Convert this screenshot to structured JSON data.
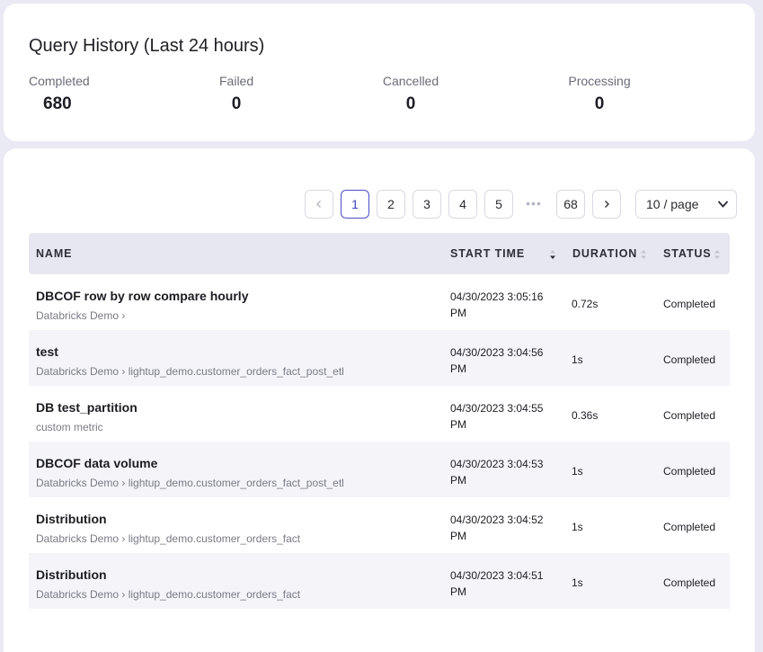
{
  "summary": {
    "title": "Query History (Last 24 hours)",
    "stats": [
      {
        "label": "Completed",
        "value": "680"
      },
      {
        "label": "Failed",
        "value": "0"
      },
      {
        "label": "Cancelled",
        "value": "0"
      },
      {
        "label": "Processing",
        "value": "0"
      }
    ]
  },
  "pagination": {
    "prev_icon": "chevron-left-icon",
    "pages": [
      "1",
      "2",
      "3",
      "4",
      "5"
    ],
    "current_page": "1",
    "ellipsis": "•••",
    "last_page": "68",
    "next_icon": "chevron-right-icon",
    "page_size": "10 / page"
  },
  "table": {
    "columns": {
      "name": "NAME",
      "start_time": "START TIME",
      "duration": "DURATION",
      "status": "STATUS"
    },
    "rows": [
      {
        "name": "DBCOF row by row compare hourly",
        "path": "Databricks Demo ›",
        "time_line1": "04/30/2023 3:05:16",
        "time_line2": "PM",
        "duration": "0.72s",
        "status": "Completed"
      },
      {
        "name": "test",
        "path": "Databricks Demo › lightup_demo.customer_orders_fact_post_etl",
        "time_line1": "04/30/2023 3:04:56",
        "time_line2": "PM",
        "duration": "1s",
        "status": "Completed"
      },
      {
        "name": "DB test_partition",
        "path": "custom metric",
        "time_line1": "04/30/2023 3:04:55",
        "time_line2": "PM",
        "duration": "0.36s",
        "status": "Completed"
      },
      {
        "name": "DBCOF data volume",
        "path": "Databricks Demo › lightup_demo.customer_orders_fact_post_etl",
        "time_line1": "04/30/2023 3:04:53",
        "time_line2": "PM",
        "duration": "1s",
        "status": "Completed"
      },
      {
        "name": "Distribution",
        "path": "Databricks Demo › lightup_demo.customer_orders_fact",
        "time_line1": "04/30/2023 3:04:52",
        "time_line2": "PM",
        "duration": "1s",
        "status": "Completed"
      },
      {
        "name": "Distribution",
        "path": "Databricks Demo › lightup_demo.customer_orders_fact",
        "time_line1": "04/30/2023 3:04:51",
        "time_line2": "PM",
        "duration": "1s",
        "status": "Completed"
      }
    ]
  },
  "colors": {
    "accent": "#4a4fc4",
    "header_bg": "#e6e7f1",
    "page_bg": "#e9eaf3"
  }
}
